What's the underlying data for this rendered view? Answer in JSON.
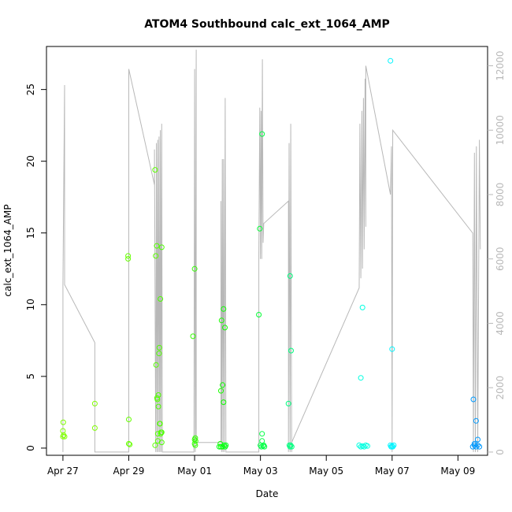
{
  "chart_data": {
    "type": "scatter",
    "title": "ATOM4 Southbound calc_ext_1064_AMP",
    "xlabel": "Date",
    "ylabel": "calc_ext_1064_AMP",
    "x_ticks": [
      "Apr 27",
      "Apr 29",
      "May 01",
      "May 03",
      "May 05",
      "May 07",
      "May 09"
    ],
    "xlim_days": [
      -0.5,
      12.9
    ],
    "ylim": [
      -0.5,
      28.0
    ],
    "y_ticks": [
      0,
      5,
      10,
      15,
      20,
      25
    ],
    "y2lim": [
      -100,
      12600
    ],
    "y2_ticks": [
      0,
      2000,
      4000,
      6000,
      8000,
      10000,
      12000
    ],
    "secondary_color": "#b8b8b8",
    "grid": false,
    "points": [
      {
        "x": 0.0,
        "y": 0.8,
        "c": "#7fff00"
      },
      {
        "x": 0.0,
        "y": 1.2,
        "c": "#7fff00"
      },
      {
        "x": 0.01,
        "y": 1.8,
        "c": "#7fff00"
      },
      {
        "x": 0.02,
        "y": 0.9,
        "c": "#7fff00"
      },
      {
        "x": 0.05,
        "y": 0.8,
        "c": "#7fff00"
      },
      {
        "x": 0.97,
        "y": 3.1,
        "c": "#7fff00"
      },
      {
        "x": 0.97,
        "y": 1.4,
        "c": "#7fff00"
      },
      {
        "x": 1.98,
        "y": 13.4,
        "c": "#66ff00"
      },
      {
        "x": 1.98,
        "y": 13.2,
        "c": "#66ff00"
      },
      {
        "x": 2.0,
        "y": 2.0,
        "c": "#66ff00"
      },
      {
        "x": 2.0,
        "y": 0.3,
        "c": "#66ff00"
      },
      {
        "x": 2.03,
        "y": 0.25,
        "c": "#66ff00"
      },
      {
        "x": 2.8,
        "y": 19.4,
        "c": "#5cff00"
      },
      {
        "x": 2.8,
        "y": 0.2,
        "c": "#5cff00"
      },
      {
        "x": 2.82,
        "y": 13.4,
        "c": "#5cff00"
      },
      {
        "x": 2.83,
        "y": 5.8,
        "c": "#55ff00"
      },
      {
        "x": 2.85,
        "y": 14.1,
        "c": "#55ff00"
      },
      {
        "x": 2.86,
        "y": 3.5,
        "c": "#55ff00"
      },
      {
        "x": 2.87,
        "y": 3.4,
        "c": "#55ff00"
      },
      {
        "x": 2.88,
        "y": 1.0,
        "c": "#55ff00"
      },
      {
        "x": 2.88,
        "y": 0.5,
        "c": "#55ff00"
      },
      {
        "x": 2.9,
        "y": 2.9,
        "c": "#50ff00"
      },
      {
        "x": 2.9,
        "y": 3.7,
        "c": "#50ff00"
      },
      {
        "x": 2.92,
        "y": 6.6,
        "c": "#50ff00"
      },
      {
        "x": 2.93,
        "y": 7.0,
        "c": "#50ff00"
      },
      {
        "x": 2.94,
        "y": 1.7,
        "c": "#50ff00"
      },
      {
        "x": 2.95,
        "y": 1.7,
        "c": "#50ff00"
      },
      {
        "x": 2.96,
        "y": 10.4,
        "c": "#4cff00"
      },
      {
        "x": 2.97,
        "y": 1.0,
        "c": "#4cff00"
      },
      {
        "x": 2.98,
        "y": 1.1,
        "c": "#4cff00"
      },
      {
        "x": 3.0,
        "y": 14.0,
        "c": "#4cff00"
      },
      {
        "x": 3.0,
        "y": 1.1,
        "c": "#4cff00"
      },
      {
        "x": 3.0,
        "y": 0.4,
        "c": "#4cff00"
      },
      {
        "x": 3.95,
        "y": 7.8,
        "c": "#33ff00"
      },
      {
        "x": 4.0,
        "y": 12.5,
        "c": "#33ff00"
      },
      {
        "x": 4.02,
        "y": 0.7,
        "c": "#33ff00"
      },
      {
        "x": 4.0,
        "y": 0.6,
        "c": "#33ff00"
      },
      {
        "x": 4.0,
        "y": 0.3,
        "c": "#33ff00"
      },
      {
        "x": 4.02,
        "y": 0.2,
        "c": "#33ff00"
      },
      {
        "x": 4.03,
        "y": 0.5,
        "c": "#33ff00"
      },
      {
        "x": 4.78,
        "y": 0.3,
        "c": "#19ff00"
      },
      {
        "x": 4.8,
        "y": 4.0,
        "c": "#19ff00"
      },
      {
        "x": 4.82,
        "y": 8.9,
        "c": "#19ff00"
      },
      {
        "x": 4.85,
        "y": 4.4,
        "c": "#0dff00"
      },
      {
        "x": 4.88,
        "y": 9.7,
        "c": "#0dff00"
      },
      {
        "x": 4.88,
        "y": 3.2,
        "c": "#0dff00"
      },
      {
        "x": 4.92,
        "y": 8.4,
        "c": "#0dff00"
      },
      {
        "x": 4.8,
        "y": 0.1,
        "c": "#0dff00"
      },
      {
        "x": 4.85,
        "y": 0.1,
        "c": "#0dff00"
      },
      {
        "x": 4.9,
        "y": 0.2,
        "c": "#00ff14"
      },
      {
        "x": 4.93,
        "y": 0.1,
        "c": "#00ff14"
      },
      {
        "x": 4.95,
        "y": 0.2,
        "c": "#00ff14"
      },
      {
        "x": 4.75,
        "y": 0.1,
        "c": "#00ff14"
      },
      {
        "x": 5.95,
        "y": 9.3,
        "c": "#00ff33"
      },
      {
        "x": 5.98,
        "y": 15.3,
        "c": "#00ff33"
      },
      {
        "x": 6.05,
        "y": 21.9,
        "c": "#00ff44"
      },
      {
        "x": 6.05,
        "y": 1.0,
        "c": "#00ff44"
      },
      {
        "x": 6.05,
        "y": 0.5,
        "c": "#00ff44"
      },
      {
        "x": 6.0,
        "y": 0.2,
        "c": "#00ff44"
      },
      {
        "x": 6.03,
        "y": 0.1,
        "c": "#00ff44"
      },
      {
        "x": 6.08,
        "y": 0.15,
        "c": "#00ff44"
      },
      {
        "x": 6.1,
        "y": 0.2,
        "c": "#00ff44"
      },
      {
        "x": 6.12,
        "y": 0.1,
        "c": "#00ff44"
      },
      {
        "x": 6.85,
        "y": 3.1,
        "c": "#00ff7f"
      },
      {
        "x": 6.9,
        "y": 12.0,
        "c": "#00ff7f"
      },
      {
        "x": 6.93,
        "y": 6.8,
        "c": "#00ff7f"
      },
      {
        "x": 6.88,
        "y": 0.2,
        "c": "#00ff7f"
      },
      {
        "x": 6.9,
        "y": 0.1,
        "c": "#00ff7f"
      },
      {
        "x": 6.92,
        "y": 0.2,
        "c": "#00ff7f"
      },
      {
        "x": 6.95,
        "y": 0.1,
        "c": "#00ff7f"
      },
      {
        "x": 9.05,
        "y": 4.9,
        "c": "#00ffe0"
      },
      {
        "x": 9.1,
        "y": 9.8,
        "c": "#00ffe0"
      },
      {
        "x": 9.0,
        "y": 0.2,
        "c": "#00ffe0"
      },
      {
        "x": 9.05,
        "y": 0.1,
        "c": "#00ffe0"
      },
      {
        "x": 9.1,
        "y": 0.15,
        "c": "#00ffe0"
      },
      {
        "x": 9.15,
        "y": 0.1,
        "c": "#00ffe0"
      },
      {
        "x": 9.2,
        "y": 0.2,
        "c": "#00ffe0"
      },
      {
        "x": 9.25,
        "y": 0.15,
        "c": "#00ffe0"
      },
      {
        "x": 9.95,
        "y": 27.0,
        "c": "#00f5ff"
      },
      {
        "x": 10.0,
        "y": 6.9,
        "c": "#00f5ff"
      },
      {
        "x": 9.95,
        "y": 0.2,
        "c": "#00f5ff"
      },
      {
        "x": 9.97,
        "y": 0.1,
        "c": "#00f5ff"
      },
      {
        "x": 10.0,
        "y": 0.15,
        "c": "#00f5ff"
      },
      {
        "x": 10.02,
        "y": 0.1,
        "c": "#00f5ff"
      },
      {
        "x": 10.05,
        "y": 0.2,
        "c": "#00f5ff"
      },
      {
        "x": 12.47,
        "y": 3.4,
        "c": "#0099ff"
      },
      {
        "x": 12.55,
        "y": 1.9,
        "c": "#0099ff"
      },
      {
        "x": 12.6,
        "y": 0.6,
        "c": "#0099ff"
      },
      {
        "x": 12.45,
        "y": 0.1,
        "c": "#0099ff"
      },
      {
        "x": 12.5,
        "y": 0.2,
        "c": "#0099ff"
      },
      {
        "x": 12.55,
        "y": 0.1,
        "c": "#0099ff"
      },
      {
        "x": 12.6,
        "y": 0.2,
        "c": "#0099ff"
      },
      {
        "x": 12.65,
        "y": 0.1,
        "c": "#0099ff"
      },
      {
        "x": 12.5,
        "y": 0.3,
        "c": "#0099ff"
      }
    ],
    "secondary_line": [
      [
        0.0,
        0
      ],
      [
        0.0,
        5200
      ],
      [
        0.05,
        11400
      ],
      [
        0.05,
        5200
      ],
      [
        0.97,
        3400
      ],
      [
        0.97,
        0
      ],
      [
        2.0,
        0
      ],
      [
        2.0,
        11900
      ],
      [
        2.78,
        8300
      ],
      [
        2.78,
        9400
      ],
      [
        2.82,
        0
      ],
      [
        2.84,
        9600
      ],
      [
        2.86,
        0
      ],
      [
        2.88,
        9700
      ],
      [
        2.9,
        0
      ],
      [
        2.92,
        9800
      ],
      [
        2.94,
        0
      ],
      [
        2.96,
        10000
      ],
      [
        2.98,
        0
      ],
      [
        3.0,
        10200
      ],
      [
        3.02,
        0
      ],
      [
        3.03,
        0
      ],
      [
        3.98,
        0
      ],
      [
        4.0,
        11900
      ],
      [
        4.02,
        0
      ],
      [
        4.05,
        12500
      ],
      [
        4.05,
        300
      ],
      [
        4.8,
        300
      ],
      [
        4.8,
        7800
      ],
      [
        4.82,
        0
      ],
      [
        4.84,
        9100
      ],
      [
        4.86,
        0
      ],
      [
        4.88,
        9100
      ],
      [
        4.9,
        0
      ],
      [
        4.93,
        11000
      ],
      [
        4.95,
        0
      ],
      [
        5.95,
        0
      ],
      [
        5.95,
        6100
      ],
      [
        5.98,
        10700
      ],
      [
        6.0,
        6000
      ],
      [
        6.02,
        10600
      ],
      [
        6.04,
        6000
      ],
      [
        6.06,
        12200
      ],
      [
        6.08,
        6500
      ],
      [
        6.1,
        7100
      ],
      [
        6.85,
        7800
      ],
      [
        6.85,
        0
      ],
      [
        6.87,
        9600
      ],
      [
        6.9,
        0
      ],
      [
        6.92,
        10200
      ],
      [
        6.95,
        0
      ],
      [
        6.95,
        300
      ],
      [
        9.0,
        5100
      ],
      [
        9.02,
        10200
      ],
      [
        9.05,
        5400
      ],
      [
        9.08,
        10600
      ],
      [
        9.1,
        5700
      ],
      [
        9.13,
        11000
      ],
      [
        9.15,
        6300
      ],
      [
        9.18,
        11600
      ],
      [
        9.2,
        7000
      ],
      [
        9.2,
        12000
      ],
      [
        9.95,
        8000
      ],
      [
        9.98,
        9500
      ],
      [
        10.0,
        0
      ],
      [
        10.02,
        10000
      ],
      [
        12.45,
        6800
      ],
      [
        12.47,
        0
      ],
      [
        12.5,
        9300
      ],
      [
        12.53,
        0
      ],
      [
        12.56,
        9500
      ],
      [
        12.6,
        0
      ],
      [
        12.65,
        9700
      ],
      [
        12.68,
        6300
      ]
    ]
  }
}
